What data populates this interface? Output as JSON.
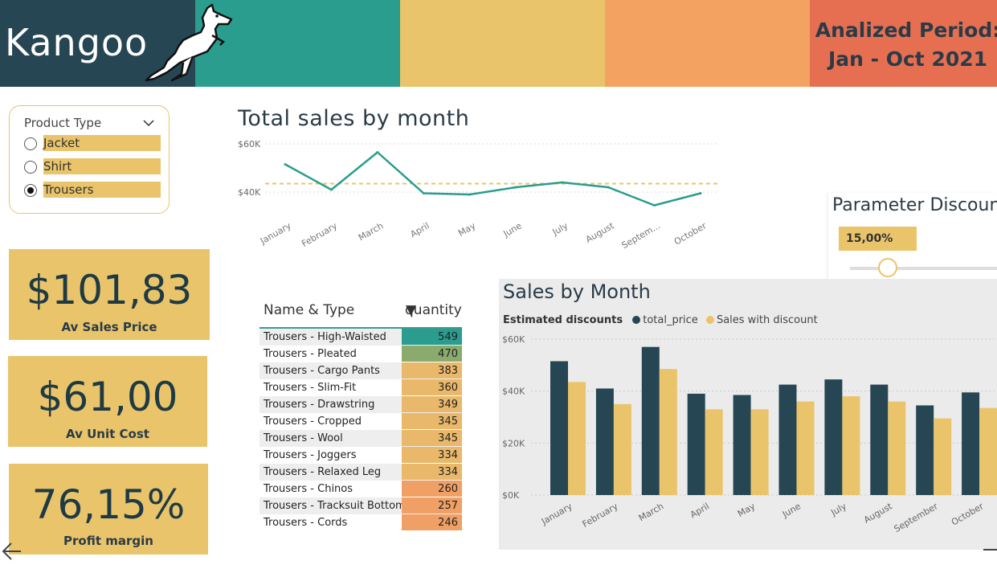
{
  "header": {
    "logo": "Kangoo",
    "period_line1": "Analized Period:",
    "period_line2": "Jan - Oct 2021",
    "band_colors": [
      "#264653",
      "#2a9d8f",
      "#e9c46a",
      "#f4a261",
      "#e76f51"
    ]
  },
  "slicer": {
    "title": "Product Type",
    "options": [
      {
        "label": "Jacket",
        "selected": false
      },
      {
        "label": "Shirt",
        "selected": false
      },
      {
        "label": "Trousers",
        "selected": true
      }
    ]
  },
  "kpis": [
    {
      "value": "$101,83",
      "caption": "Av Sales Price"
    },
    {
      "value": "$61,00",
      "caption": "Av Unit Cost"
    },
    {
      "value": "76,15%",
      "caption": "Profit margin"
    }
  ],
  "parameter": {
    "title": "Parameter Discount",
    "value": "15,00%"
  },
  "table": {
    "col_name": "Name & Type",
    "col_qty": "quantity",
    "rows": [
      {
        "name": "Trousers - High-Waisted",
        "qty": 549
      },
      {
        "name": "Trousers - Pleated",
        "qty": 470
      },
      {
        "name": "Trousers - Cargo Pants",
        "qty": 383
      },
      {
        "name": "Trousers - Slim-Fit",
        "qty": 360
      },
      {
        "name": "Trousers - Drawstring",
        "qty": 349
      },
      {
        "name": "Trousers - Cropped",
        "qty": 345
      },
      {
        "name": "Trousers - Wool",
        "qty": 345
      },
      {
        "name": "Trousers - Joggers",
        "qty": 334
      },
      {
        "name": "Trousers - Relaxed Leg",
        "qty": 334
      },
      {
        "name": "Trousers - Chinos",
        "qty": 260
      },
      {
        "name": "Trousers - Tracksuit Bottoms",
        "qty": 257
      },
      {
        "name": "Trousers - Cords",
        "qty": 246
      }
    ]
  },
  "chart_data": [
    {
      "type": "line",
      "title": "Total sales by month",
      "categories": [
        "January",
        "February",
        "March",
        "April",
        "May",
        "June",
        "July",
        "August",
        "Septem...",
        "October"
      ],
      "series": [
        {
          "values": [
            51500,
            41000,
            56500,
            39500,
            39000,
            42000,
            44000,
            42000,
            34500,
            39500
          ],
          "color": "#2a9d8f"
        }
      ],
      "reference_line": {
        "value": 43500,
        "color": "#e9c46a",
        "style": "dashed"
      },
      "y_ticks": [
        {
          "value": 40000,
          "label": "$40K"
        },
        {
          "value": 60000,
          "label": "$60K"
        }
      ],
      "ylim": [
        30000,
        60000
      ],
      "grid": true
    },
    {
      "type": "bar",
      "title": "Sales by Month",
      "legend_title": "Estimated discounts",
      "legend_position": "top-left",
      "categories": [
        "January",
        "February",
        "March",
        "April",
        "May",
        "June",
        "July",
        "August",
        "September",
        "October"
      ],
      "series": [
        {
          "name": "total_price",
          "color": "#264653",
          "values": [
            51500,
            41000,
            57000,
            39000,
            38500,
            42500,
            44500,
            42500,
            34500,
            39500
          ]
        },
        {
          "name": "Sales with discount",
          "color": "#e9c46a",
          "values": [
            43500,
            35000,
            48500,
            33000,
            33000,
            36000,
            38000,
            36000,
            29500,
            33500
          ]
        }
      ],
      "y_ticks": [
        {
          "value": 0,
          "label": "$0K"
        },
        {
          "value": 20000,
          "label": "$20K"
        },
        {
          "value": 40000,
          "label": "$40K"
        },
        {
          "value": 60000,
          "label": "$60K"
        }
      ],
      "ylim": [
        0,
        60000
      ],
      "grid": true
    }
  ]
}
